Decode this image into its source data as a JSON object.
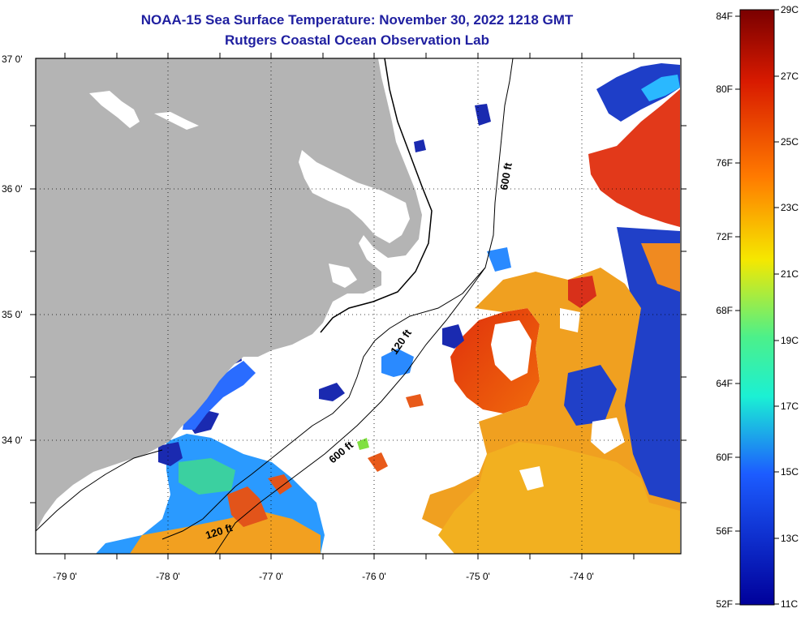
{
  "title": "NOAA-15 Sea Surface Temperature:  November 30, 2022 1218 GMT",
  "subtitle": "Rutgers Coastal Ocean Observation Lab",
  "map": {
    "lon_ticks": [
      "-79 0'",
      "-78 0'",
      "-77 0'",
      "-76 0'",
      "-75 0'",
      "-74 0'"
    ],
    "lat_ticks": [
      "37 0'",
      "36 0'",
      "35 0'",
      "34 0'"
    ],
    "contours": [
      {
        "label": "600 ft"
      },
      {
        "label": "120 ft"
      },
      {
        "label": "600 ft"
      },
      {
        "label": "120 ft"
      }
    ],
    "land_color": "#b4b4b4",
    "no_data_color": "#ffffff"
  },
  "colorbar": {
    "fahrenheit_labels": [
      "84F",
      "80F",
      "76F",
      "72F",
      "68F",
      "64F",
      "60F",
      "56F",
      "52F"
    ],
    "celsius_labels": [
      "29C",
      "27C",
      "25C",
      "23C",
      "21C",
      "19C",
      "17C",
      "15C",
      "13C",
      "11C"
    ],
    "colors": [
      "#7a0000",
      "#d81a00",
      "#ff7a00",
      "#f5e800",
      "#1bf0d4",
      "#1c5cff",
      "#00009a"
    ]
  }
}
